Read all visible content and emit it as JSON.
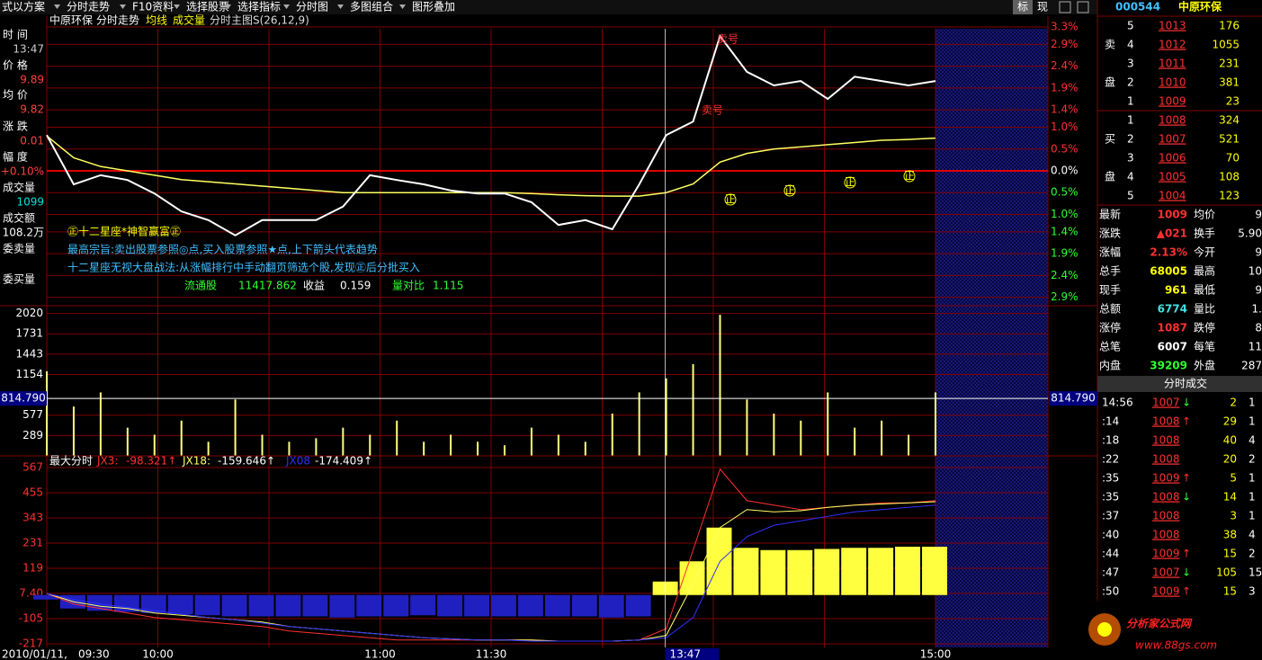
{
  "toolbar": {
    "items": [
      "式以方案",
      "分时走势",
      "F10资料",
      "选择股票",
      "选择指标",
      "分时图",
      "多图组合",
      "图形叠加"
    ],
    "right": [
      "标",
      "现"
    ]
  },
  "header": {
    "name": "中原环保",
    "view": "分时走势",
    "avg": "均线",
    "vol": "成交量",
    "formula": "分时主图S(26,12,9)"
  },
  "info": [
    [
      "时 间",
      "13:47"
    ],
    [
      "价 格",
      "9.89"
    ],
    [
      "均 价",
      "9.82"
    ],
    [
      "涨 跌",
      "0.01"
    ],
    [
      "幅 度",
      "+0.10%"
    ],
    [
      "成交量",
      "1099"
    ],
    [
      "成交额",
      "108.2万"
    ]
  ],
  "queue_labels": [
    "委卖量",
    "委买量"
  ],
  "price_panel": {
    "ylim": [
      -3.3,
      3.3
    ],
    "yticks": [
      {
        "value": 3.3,
        "label": "3.3%"
      },
      {
        "value": 2.9,
        "label": "2.9%"
      },
      {
        "value": 2.4,
        "label": "2.4%"
      },
      {
        "value": 1.9,
        "label": "1.9%"
      },
      {
        "value": 1.4,
        "label": "1.4%"
      },
      {
        "value": 1.0,
        "label": "1.0%"
      },
      {
        "value": 0.5,
        "label": "0.5%"
      },
      {
        "value": 0.0,
        "label": "0.0%"
      },
      {
        "value": -0.5,
        "label": "0.5%"
      },
      {
        "value": -1.0,
        "label": "1.0%"
      },
      {
        "value": -1.4,
        "label": "1.4%"
      },
      {
        "value": -1.9,
        "label": "1.9%"
      },
      {
        "value": -2.4,
        "label": "2.4%"
      },
      {
        "value": -2.9,
        "label": "2.9%"
      }
    ],
    "price": [
      0.82,
      -0.31,
      -0.1,
      -0.21,
      -0.52,
      -0.93,
      -1.13,
      -1.48,
      -1.13,
      -1.13,
      -1.13,
      -0.82,
      -0.1,
      -0.21,
      -0.31,
      -0.45,
      -0.52,
      -0.52,
      -0.72,
      -1.24,
      -1.13,
      -1.34,
      -0.31,
      0.82,
      1.13,
      3.09,
      2.27,
      1.96,
      2.06,
      1.65,
      2.16,
      2.06,
      1.96,
      2.06
    ],
    "avg": [
      0.8,
      0.3,
      0.1,
      0.0,
      -0.1,
      -0.2,
      -0.25,
      -0.3,
      -0.35,
      -0.4,
      -0.45,
      -0.5,
      -0.5,
      -0.5,
      -0.5,
      -0.5,
      -0.5,
      -0.5,
      -0.52,
      -0.55,
      -0.57,
      -0.58,
      -0.58,
      -0.5,
      -0.3,
      0.2,
      0.4,
      0.5,
      0.55,
      0.6,
      0.65,
      0.7,
      0.72,
      0.75
    ],
    "signals": [
      "卖号",
      "卖号"
    ],
    "signal_mark": "正",
    "notes": [
      "㊣十二星座*神智赢富㊣",
      "最高宗旨:卖出股票参照◎点,买入股票参照★点,上下箭头代表趋势",
      "十二星座无视大盘战法:从涨幅排行中手动翻页筛选个股,发现㊣后分批买入"
    ],
    "stats": [
      "流通股",
      "11417.862",
      "收益",
      "0.159",
      "量对比",
      "1.115"
    ]
  },
  "volume_panel": {
    "ylim": [
      0,
      2040
    ],
    "yticks": [
      289,
      577,
      1154,
      1443,
      1731,
      2020
    ],
    "cursor": {
      "value": 814.79,
      "label": "814.790"
    },
    "values": [
      1200,
      700,
      900,
      400,
      300,
      500,
      200,
      800,
      300,
      200,
      250,
      400,
      300,
      500,
      200,
      300,
      200,
      150,
      400,
      300,
      200,
      600,
      900,
      1100,
      1300,
      2000,
      800,
      600,
      500,
      900,
      400,
      500,
      300,
      900
    ]
  },
  "indicator_panel": {
    "title": "最大分时",
    "ylim": [
      -217,
      567
    ],
    "yticks": [
      -217,
      -105,
      {
        "value": 7.4,
        "label": "7.40"
      },
      119,
      231,
      343,
      455,
      567
    ],
    "series": [
      {
        "name": "JX3:",
        "value_label": "-98.321↑",
        "color": "#ff3030",
        "values": [
          7,
          -40,
          -60,
          -80,
          -100,
          -110,
          -120,
          -130,
          -140,
          -160,
          -170,
          -180,
          -190,
          -200,
          -200,
          -200,
          -200,
          -200,
          -200,
          -205,
          -205,
          -205,
          -200,
          -150,
          200,
          560,
          420,
          400,
          380,
          390,
          400,
          410,
          410,
          420
        ]
      },
      {
        "name": "JX18:",
        "value_label": "-159.646↑",
        "color": "#ffff66",
        "values": [
          7,
          -30,
          -50,
          -60,
          -80,
          -90,
          -100,
          -110,
          -120,
          -140,
          -150,
          -160,
          -170,
          -180,
          -190,
          -195,
          -200,
          -200,
          -200,
          -205,
          -205,
          -205,
          -200,
          -180,
          50,
          300,
          380,
          370,
          375,
          390,
          400,
          405,
          410,
          415
        ]
      },
      {
        "name": "JX08",
        "value_label": "-174.409↑",
        "color": "#3030ff",
        "values": [
          7,
          -20,
          -40,
          -55,
          -70,
          -85,
          -100,
          -110,
          -125,
          -140,
          -150,
          -160,
          -170,
          -180,
          -190,
          -195,
          -200,
          -200,
          -205,
          -205,
          -205,
          -205,
          -200,
          -190,
          -100,
          150,
          260,
          310,
          330,
          350,
          370,
          380,
          390,
          400
        ]
      }
    ],
    "bars": [
      -20,
      -60,
      -70,
      -75,
      -80,
      -85,
      -90,
      -95,
      -95,
      -95,
      -95,
      -100,
      -95,
      -95,
      -90,
      -95,
      -95,
      -95,
      -95,
      -95,
      -95,
      -100,
      -95,
      60,
      150,
      300,
      210,
      200,
      200,
      205,
      210,
      210,
      215,
      215
    ]
  },
  "time_axis": {
    "date": "2010/01/11,",
    "times": [
      "09:30",
      "10:00",
      "11:00",
      "11:30",
      "15:00"
    ],
    "cursor_time": "13:47"
  },
  "quote": {
    "code": "000544",
    "name": "中原环保",
    "sell_label": [
      "卖",
      "盘"
    ],
    "buy_label": [
      "买",
      "盘"
    ],
    "asks": [
      [
        "5",
        "1013",
        "176"
      ],
      [
        "4",
        "1012",
        "1055"
      ],
      [
        "3",
        "1011",
        "231"
      ],
      [
        "2",
        "1010",
        "381"
      ],
      [
        "1",
        "1009",
        "23"
      ]
    ],
    "bids": [
      [
        "1",
        "1008",
        "324"
      ],
      [
        "2",
        "1007",
        "521"
      ],
      [
        "3",
        "1006",
        "70"
      ],
      [
        "4",
        "1005",
        "108"
      ],
      [
        "5",
        "1004",
        "123"
      ]
    ],
    "stats": [
      [
        "最新",
        "1009",
        "均价",
        "9"
      ],
      [
        "涨跌",
        "▲021",
        "换手",
        "5.90"
      ],
      [
        "涨幅",
        "2.13%",
        "今开",
        "9"
      ],
      [
        "总手",
        "68005",
        "最高",
        "10"
      ],
      [
        "现手",
        "961",
        "最低",
        "9"
      ],
      [
        "总额",
        "6774",
        "量比",
        "1."
      ],
      [
        "涨停",
        "1087",
        "跌停",
        "8"
      ],
      [
        "总笔",
        "6007",
        "每笔",
        "11"
      ],
      [
        "内盘",
        "39209",
        "外盘",
        "287"
      ]
    ],
    "trades_title": "分时成交",
    "trades": [
      [
        "14:56",
        "1007",
        "↓",
        "2",
        "1"
      ],
      [
        ":14",
        "1008",
        "↑",
        "29",
        "1"
      ],
      [
        ":18",
        "1008",
        "",
        "40",
        "4"
      ],
      [
        ":22",
        "1008",
        "",
        "20",
        "2"
      ],
      [
        ":35",
        "1009",
        "↑",
        "5",
        "1"
      ],
      [
        ":35",
        "1008",
        "↓",
        "14",
        "1"
      ],
      [
        ":37",
        "1008",
        "",
        "3",
        "1"
      ],
      [
        ":40",
        "1008",
        "",
        "38",
        "4"
      ],
      [
        ":44",
        "1009",
        "↑",
        "15",
        "2"
      ],
      [
        ":47",
        "1007",
        "↓",
        "105",
        "15"
      ],
      [
        ":50",
        "1009",
        "↑",
        "15",
        "3"
      ]
    ]
  },
  "watermark": {
    "name": "分析家公式网",
    "url": "www.88gs.com"
  }
}
